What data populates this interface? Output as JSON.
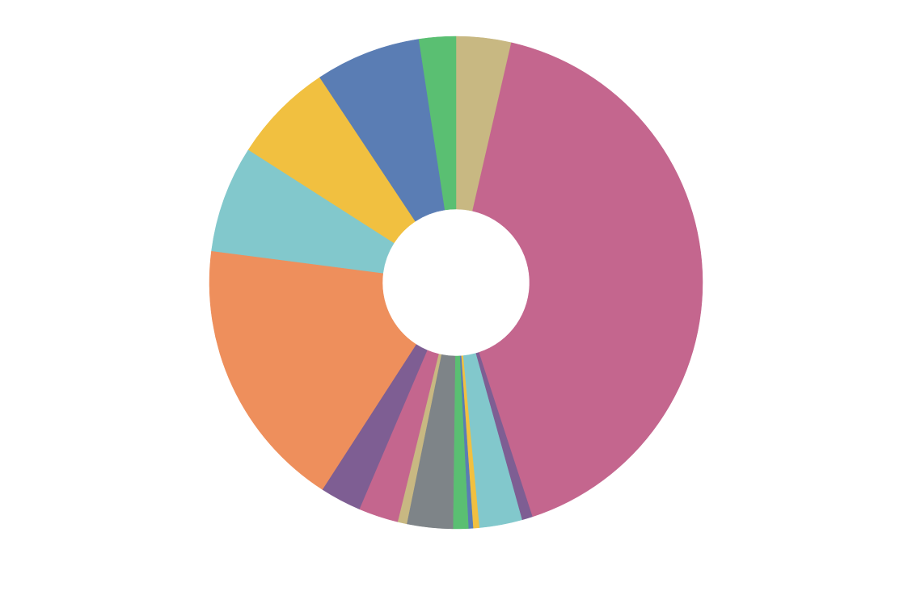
{
  "chart_data": {
    "type": "donut",
    "values": [
      3.6,
      41.3,
      0.7,
      2.8,
      0.4,
      0.3,
      1.0,
      3.0,
      0.6,
      2.6,
      2.7,
      17.9,
      7.0,
      6.6,
      6.9,
      2.4
    ],
    "colors": [
      "#c8b882",
      "#c4668e",
      "#7e5e93",
      "#82c8cc",
      "#f1c040",
      "#5a7db4",
      "#5abf72",
      "#7e8488",
      "#c8b882",
      "#c4668e",
      "#7e5e93",
      "#ee8f5c",
      "#82c8cc",
      "#f1c040",
      "#5a7db4",
      "#5abf72"
    ]
  }
}
